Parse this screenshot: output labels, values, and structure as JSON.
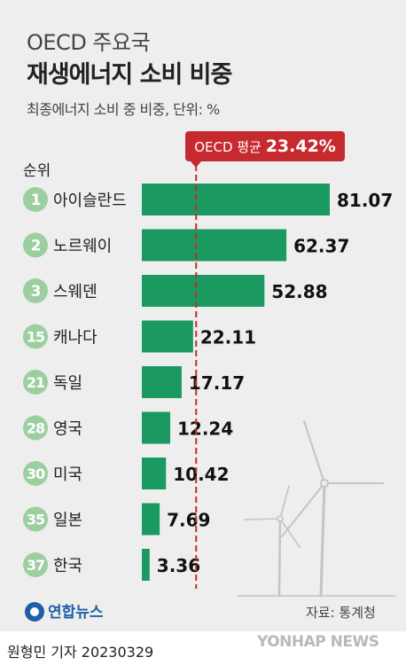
{
  "header": {
    "title_line1": "OECD 주요국",
    "title_line2": "재생에너지 소비 비중",
    "subtitle": "최종에너지 소비 중 비중, 단위: %"
  },
  "rank_header": "순위",
  "average": {
    "label": "OECD 평균",
    "value": "23.42%"
  },
  "chart_data": {
    "type": "bar",
    "orientation": "horizontal",
    "categories": [
      "아이슬란드",
      "노르웨이",
      "스웨덴",
      "캐나다",
      "독일",
      "영국",
      "미국",
      "일본",
      "한국"
    ],
    "ranks": [
      "1",
      "2",
      "3",
      "15",
      "21",
      "28",
      "30",
      "35",
      "37"
    ],
    "values": [
      81.07,
      62.37,
      52.88,
      22.11,
      17.17,
      12.24,
      10.42,
      7.69,
      3.36
    ],
    "value_labels": [
      "81.07",
      "62.37",
      "52.88",
      "22.11",
      "17.17",
      "12.24",
      "10.42",
      "7.69",
      "3.36"
    ],
    "reference_line": 23.42,
    "xlim": [
      0,
      81.07
    ],
    "colors": {
      "bar": "#1a9a61",
      "rank_badge": "#9ccf9f",
      "average": "#c62a2f"
    }
  },
  "footer": {
    "logo": "연합뉴스",
    "source": "자료: 통계청",
    "reporter": "원형민 기자  20230329",
    "watermark": "YONHAP NEWS"
  }
}
